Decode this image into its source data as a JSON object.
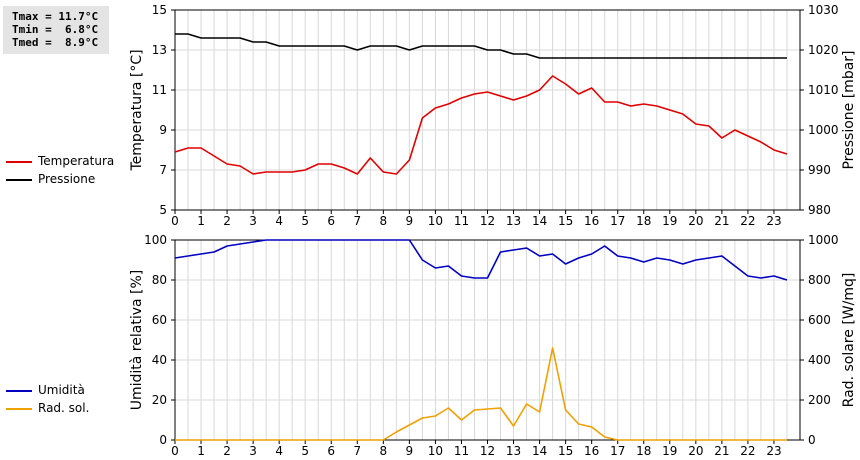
{
  "stats": {
    "tmax": "Tmax = 11.7°C",
    "tmin": "Tmin =  6.8°C",
    "tmed": "Tmed =  8.9°C"
  },
  "colors": {
    "temperatura": "#e00000",
    "pressione": "#000000",
    "umidita": "#0000c0",
    "rad_sol": "#f0a000",
    "grid": "#d8d8d8"
  },
  "legend_top": [
    {
      "label": "Temperatura",
      "color": "#e00000"
    },
    {
      "label": "Pressione",
      "color": "#000000"
    }
  ],
  "legend_bottom": [
    {
      "label": "Umidità",
      "color": "#0000c0"
    },
    {
      "label": "Rad. sol.",
      "color": "#f0a000"
    }
  ],
  "chart_data": [
    {
      "type": "line",
      "xlabel": "",
      "ylabel_left": "Temperatura [°C]",
      "ylabel_right": "Pressione [mbar]",
      "xlim": [
        0,
        24
      ],
      "ylim_left": [
        5,
        15
      ],
      "ylim_right": [
        980,
        1030
      ],
      "yticks_left": [
        5,
        7,
        9,
        11,
        13,
        15
      ],
      "yticks_right": [
        980,
        990,
        1000,
        1010,
        1020,
        1030
      ],
      "xticks": [
        "0",
        "1",
        "2",
        "3",
        "4",
        "5",
        "6",
        "7",
        "8",
        "9",
        "10",
        "11",
        "12",
        "13",
        "14",
        "15",
        "16",
        "17",
        "18",
        "19",
        "20",
        "21",
        "22",
        "23"
      ],
      "grid": true,
      "series": [
        {
          "name": "Temperatura",
          "axis": "left",
          "color": "#e00000",
          "x": [
            0,
            0.5,
            1,
            1.5,
            2,
            2.5,
            3,
            3.5,
            4,
            4.5,
            5,
            5.5,
            6,
            6.5,
            7,
            7.5,
            8,
            8.5,
            9,
            9.5,
            10,
            10.5,
            11,
            11.5,
            12,
            12.5,
            13,
            13.5,
            14,
            14.5,
            15,
            15.5,
            16,
            16.5,
            17,
            17.5,
            18,
            18.5,
            19,
            19.5,
            20,
            20.5,
            21,
            21.5,
            22,
            22.5,
            23,
            23.5
          ],
          "values": [
            7.9,
            8.1,
            8.1,
            7.7,
            7.3,
            7.2,
            6.8,
            6.9,
            6.9,
            6.9,
            7.0,
            7.3,
            7.3,
            7.1,
            6.8,
            7.6,
            6.9,
            6.8,
            7.5,
            9.6,
            10.1,
            10.3,
            10.6,
            10.8,
            10.9,
            10.7,
            10.5,
            10.7,
            11.0,
            11.7,
            11.3,
            10.8,
            11.1,
            10.4,
            10.4,
            10.2,
            10.3,
            10.2,
            10.0,
            9.8,
            9.3,
            9.2,
            8.6,
            9.0,
            8.7,
            8.4,
            8.0,
            7.8
          ]
        },
        {
          "name": "Pressione",
          "axis": "right",
          "color": "#000000",
          "x": [
            0,
            0.5,
            1,
            1.5,
            2,
            2.5,
            3,
            3.5,
            4,
            4.5,
            5,
            5.5,
            6,
            6.5,
            7,
            7.5,
            8,
            8.5,
            9,
            9.5,
            10,
            10.5,
            11,
            11.5,
            12,
            12.5,
            13,
            13.5,
            14,
            14.5,
            15,
            15.5,
            16,
            16.5,
            17,
            17.5,
            18,
            18.5,
            19,
            19.5,
            20,
            20.5,
            21,
            21.5,
            22,
            22.5,
            23,
            23.5
          ],
          "values": [
            1024,
            1024,
            1023,
            1023,
            1023,
            1023,
            1022,
            1022,
            1021,
            1021,
            1021,
            1021,
            1021,
            1021,
            1020,
            1021,
            1021,
            1021,
            1020,
            1021,
            1021,
            1021,
            1021,
            1021,
            1020,
            1020,
            1019,
            1019,
            1018,
            1018,
            1018,
            1018,
            1018,
            1018,
            1018,
            1018,
            1018,
            1018,
            1018,
            1018,
            1018,
            1018,
            1018,
            1018,
            1018,
            1018,
            1018,
            1018
          ]
        }
      ]
    },
    {
      "type": "line",
      "xlabel": "",
      "ylabel_left": "Umidità relativa [%]",
      "ylabel_right": "Rad. solare [W/mq]",
      "xlim": [
        0,
        24
      ],
      "ylim_left": [
        0,
        100
      ],
      "ylim_right": [
        0,
        1000
      ],
      "yticks_left": [
        0,
        20,
        40,
        60,
        80,
        100
      ],
      "yticks_right": [
        0,
        200,
        400,
        600,
        800,
        1000
      ],
      "xticks": [
        "0",
        "1",
        "2",
        "3",
        "4",
        "5",
        "6",
        "7",
        "8",
        "9",
        "10",
        "11",
        "12",
        "13",
        "14",
        "15",
        "16",
        "17",
        "18",
        "19",
        "20",
        "21",
        "22",
        "23"
      ],
      "grid": true,
      "series": [
        {
          "name": "Umidità",
          "axis": "left",
          "color": "#0000c0",
          "x": [
            0,
            0.5,
            1,
            1.5,
            2,
            2.5,
            3,
            3.5,
            4,
            4.5,
            5,
            5.5,
            6,
            6.5,
            7,
            7.5,
            8,
            8.5,
            9,
            9.5,
            10,
            10.5,
            11,
            11.5,
            12,
            12.5,
            13,
            13.5,
            14,
            14.5,
            15,
            15.5,
            16,
            16.5,
            17,
            17.5,
            18,
            18.5,
            19,
            19.5,
            20,
            20.5,
            21,
            21.5,
            22,
            22.5,
            23,
            23.5
          ],
          "values": [
            91,
            92,
            93,
            94,
            97,
            98,
            99,
            100,
            100,
            100,
            100,
            100,
            100,
            100,
            100,
            100,
            100,
            100,
            100,
            90,
            86,
            87,
            82,
            81,
            81,
            94,
            95,
            96,
            92,
            93,
            88,
            91,
            93,
            97,
            92,
            91,
            89,
            91,
            90,
            88,
            90,
            91,
            92,
            87,
            82,
            81,
            82,
            80
          ]
        },
        {
          "name": "Rad. sol.",
          "axis": "right",
          "color": "#f0a000",
          "x": [
            0,
            0.5,
            1,
            1.5,
            2,
            2.5,
            3,
            3.5,
            4,
            4.5,
            5,
            5.5,
            6,
            6.5,
            7,
            7.5,
            8,
            8.5,
            9,
            9.5,
            10,
            10.5,
            11,
            11.5,
            12,
            12.5,
            13,
            13.5,
            14,
            14.5,
            15,
            15.5,
            16,
            16.5,
            17,
            17.5,
            18,
            18.5,
            19,
            19.5,
            20,
            20.5,
            21,
            21.5,
            22,
            22.5,
            23,
            23.5
          ],
          "values": [
            0,
            0,
            0,
            0,
            0,
            0,
            0,
            0,
            0,
            0,
            0,
            0,
            0,
            0,
            0,
            0,
            0,
            40,
            75,
            110,
            120,
            160,
            100,
            150,
            155,
            160,
            70,
            180,
            140,
            460,
            150,
            80,
            65,
            15,
            0,
            0,
            0,
            0,
            0,
            0,
            0,
            0,
            0,
            0,
            0,
            0,
            0,
            0
          ]
        }
      ]
    }
  ]
}
